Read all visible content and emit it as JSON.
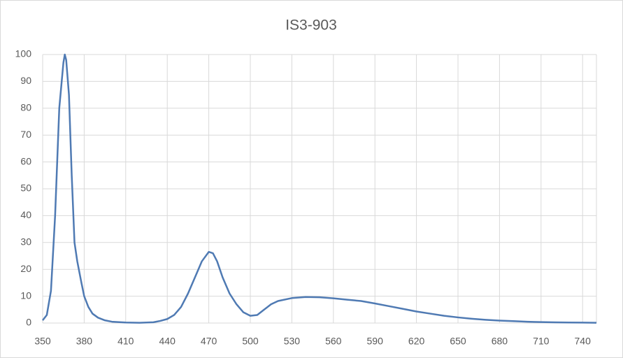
{
  "chart_data": {
    "type": "line",
    "title": "IS3-903",
    "x": [
      350,
      353,
      356,
      359,
      362,
      365,
      366,
      367,
      369,
      371,
      373,
      375,
      378,
      380,
      383,
      386,
      390,
      395,
      400,
      410,
      420,
      430,
      435,
      440,
      445,
      450,
      455,
      460,
      465,
      470,
      473,
      476,
      480,
      485,
      490,
      495,
      500,
      505,
      510,
      515,
      520,
      530,
      540,
      550,
      560,
      570,
      580,
      590,
      600,
      610,
      620,
      630,
      640,
      650,
      660,
      670,
      680,
      690,
      700,
      710,
      720,
      730,
      740,
      750
    ],
    "series": [
      {
        "name": "IS3-903",
        "color": "#4f7ab3",
        "values": [
          1,
          3,
          12,
          40,
          80,
          97,
          100,
          98,
          85,
          55,
          30,
          23,
          15,
          10,
          6,
          3.5,
          2,
          1,
          0.5,
          0.2,
          0.1,
          0.3,
          0.8,
          1.5,
          3,
          6,
          11,
          17,
          23,
          26.5,
          26,
          23,
          17,
          11,
          7,
          4,
          2.7,
          3,
          5,
          7,
          8.2,
          9.3,
          9.7,
          9.6,
          9.2,
          8.7,
          8.2,
          7.3,
          6.3,
          5.3,
          4.3,
          3.5,
          2.7,
          2.1,
          1.6,
          1.2,
          0.9,
          0.7,
          0.5,
          0.35,
          0.25,
          0.2,
          0.15,
          0.1
        ]
      }
    ],
    "xlim": [
      350,
      750
    ],
    "xticks": [
      350,
      380,
      410,
      440,
      470,
      500,
      530,
      560,
      590,
      620,
      650,
      680,
      710,
      740
    ],
    "ylim": [
      0,
      100
    ],
    "yticks": [
      0,
      10,
      20,
      30,
      40,
      50,
      60,
      70,
      80,
      90,
      100
    ],
    "grid": true
  }
}
